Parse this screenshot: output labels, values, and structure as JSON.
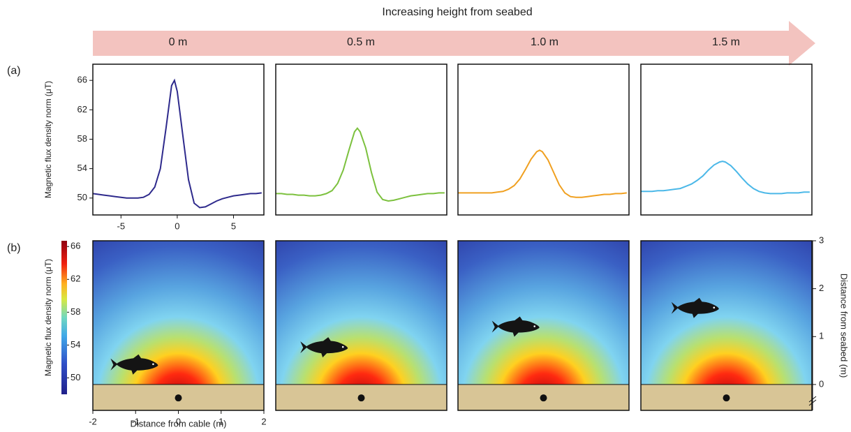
{
  "header": {
    "title": "Increasing height from seabed",
    "heights": [
      "0 m",
      "0.5 m",
      "1.0 m",
      "1.5 m"
    ]
  },
  "panel_labels": [
    "(a)",
    "(b)"
  ],
  "chart_data": [
    {
      "type": "line",
      "ylabel": "Magnetic flux density norm  (μT)",
      "color": "#2e2a8c",
      "x": [
        -7.5,
        -7,
        -6.5,
        -6,
        -5.5,
        -5,
        -4.5,
        -4,
        -3.5,
        -3,
        -2.5,
        -2,
        -1.5,
        -1,
        -0.5,
        -0.25,
        0,
        0.5,
        1,
        1.5,
        2,
        2.5,
        3,
        3.5,
        4,
        4.5,
        5,
        5.5,
        6,
        6.5,
        7,
        7.5
      ],
      "values": [
        50.6,
        50.5,
        50.4,
        50.3,
        50.2,
        50.1,
        50.0,
        50.0,
        50.0,
        50.1,
        50.5,
        51.5,
        54.0,
        59.5,
        65.3,
        66.0,
        64.5,
        58.5,
        52.5,
        49.3,
        48.7,
        48.8,
        49.2,
        49.6,
        49.9,
        50.1,
        50.3,
        50.4,
        50.5,
        50.6,
        50.6,
        50.7
      ],
      "xlim": [
        -7.5,
        7.7
      ],
      "ylim": [
        47.7,
        68.2
      ],
      "xticks": [
        -5,
        0,
        5
      ],
      "yticks": [
        50,
        54,
        58,
        62,
        66
      ]
    },
    {
      "type": "line",
      "color": "#7cc13e",
      "x": [
        -7.5,
        -7,
        -6.5,
        -6,
        -5.5,
        -5,
        -4.5,
        -4,
        -3.5,
        -3,
        -2.5,
        -2,
        -1.5,
        -1,
        -0.5,
        -0.25,
        0,
        0.5,
        1,
        1.5,
        2,
        2.5,
        3,
        3.5,
        4,
        4.5,
        5,
        5.5,
        6,
        6.5,
        7,
        7.5
      ],
      "values": [
        50.6,
        50.6,
        50.5,
        50.5,
        50.4,
        50.4,
        50.3,
        50.3,
        50.4,
        50.6,
        51.0,
        52.0,
        53.8,
        56.5,
        59.0,
        59.5,
        59.0,
        56.8,
        53.5,
        50.8,
        49.8,
        49.6,
        49.7,
        49.9,
        50.1,
        50.3,
        50.4,
        50.5,
        50.6,
        50.6,
        50.7,
        50.7
      ],
      "xlim": [
        -7.5,
        7.7
      ],
      "ylim": [
        47.7,
        68.2
      ]
    },
    {
      "type": "line",
      "color": "#f0a020",
      "x": [
        -7.5,
        -7,
        -6.5,
        -6,
        -5.5,
        -5,
        -4.5,
        -4,
        -3.5,
        -3,
        -2.5,
        -2,
        -1.5,
        -1,
        -0.5,
        -0.25,
        0,
        0.5,
        1,
        1.5,
        2,
        2.5,
        3,
        3.5,
        4,
        4.5,
        5,
        5.5,
        6,
        6.5,
        7,
        7.5
      ],
      "values": [
        50.7,
        50.7,
        50.7,
        50.7,
        50.7,
        50.7,
        50.7,
        50.8,
        50.9,
        51.2,
        51.7,
        52.6,
        53.9,
        55.3,
        56.3,
        56.5,
        56.3,
        55.2,
        53.5,
        51.8,
        50.7,
        50.2,
        50.1,
        50.1,
        50.2,
        50.3,
        50.4,
        50.5,
        50.5,
        50.6,
        50.6,
        50.7
      ],
      "xlim": [
        -7.5,
        7.7
      ],
      "ylim": [
        47.7,
        68.2
      ]
    },
    {
      "type": "line",
      "color": "#4bb8e8",
      "x": [
        -7.5,
        -7,
        -6.5,
        -6,
        -5.5,
        -5,
        -4.5,
        -4,
        -3.5,
        -3,
        -2.5,
        -2,
        -1.5,
        -1,
        -0.5,
        -0.25,
        0,
        0.5,
        1,
        1.5,
        2,
        2.5,
        3,
        3.5,
        4,
        4.5,
        5,
        5.5,
        6,
        6.5,
        7,
        7.5
      ],
      "values": [
        50.9,
        50.9,
        50.9,
        51.0,
        51.0,
        51.1,
        51.2,
        51.3,
        51.6,
        51.9,
        52.4,
        53.0,
        53.8,
        54.5,
        54.9,
        55.0,
        54.9,
        54.4,
        53.6,
        52.7,
        51.9,
        51.3,
        50.9,
        50.7,
        50.6,
        50.6,
        50.6,
        50.7,
        50.7,
        50.7,
        50.8,
        50.8
      ],
      "xlim": [
        -7.5,
        7.7
      ],
      "ylim": [
        47.7,
        68.2
      ]
    },
    {
      "type": "heatmap",
      "xlabel": "Distance from cable (m)",
      "xlim": [
        -2,
        2
      ],
      "ylim": [
        -0.54,
        3
      ],
      "xticks": [
        -2,
        -1,
        0,
        1,
        2
      ],
      "colorbar": {
        "label": "Magnetic flux density norm  (μT)",
        "lim": [
          48.0,
          66.7
        ],
        "ticks": [
          50,
          54,
          58,
          62,
          66
        ]
      },
      "cable": {
        "x": 0,
        "y": -0.28
      },
      "fish": {
        "x": -1.03,
        "y": 0.41
      }
    },
    {
      "type": "heatmap",
      "xlim": [
        -2,
        2
      ],
      "ylim": [
        -0.54,
        3
      ],
      "cable": {
        "x": 0,
        "y": -0.28
      },
      "fish": {
        "x": -0.87,
        "y": 0.77
      }
    },
    {
      "type": "heatmap",
      "xlim": [
        -2,
        2
      ],
      "ylim": [
        -0.54,
        3
      ],
      "cable": {
        "x": 0,
        "y": -0.28
      },
      "fish": {
        "x": -0.65,
        "y": 1.2
      }
    },
    {
      "type": "heatmap",
      "ylabel": "Distance from seabed (m)",
      "xlim": [
        -2,
        2
      ],
      "ylim": [
        -0.54,
        3
      ],
      "yticks": [
        0,
        1,
        2,
        3
      ],
      "cable": {
        "x": 0,
        "y": -0.28
      },
      "fish": {
        "x": -0.73,
        "y": 1.59
      }
    }
  ]
}
